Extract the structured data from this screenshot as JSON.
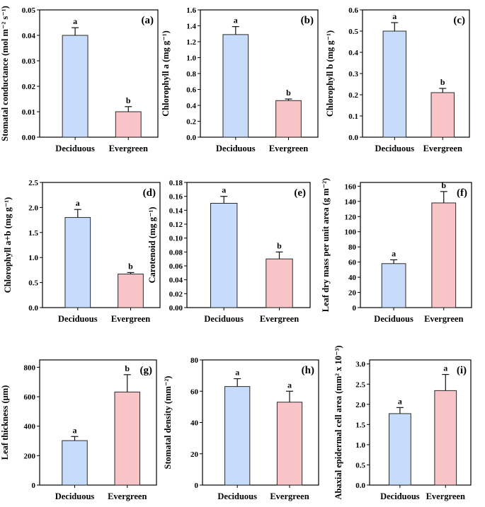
{
  "chart_data": [
    {
      "id": "a",
      "type": "bar",
      "panel_label": "(a)",
      "categories": [
        "Deciduous",
        "Evergreen"
      ],
      "values": [
        0.04,
        0.01
      ],
      "errors": [
        0.003,
        0.002
      ],
      "letters": [
        "a",
        "b"
      ],
      "ylabel": "Stomatal conductance (mol m⁻² s⁻¹)",
      "ylim": [
        0,
        0.05
      ],
      "yticks": [
        "0.00",
        "0.01",
        "0.02",
        "0.03",
        "0.04",
        "0.05"
      ]
    },
    {
      "id": "b",
      "type": "bar",
      "panel_label": "(b)",
      "categories": [
        "Deciduous",
        "Evergreen"
      ],
      "values": [
        1.29,
        0.46
      ],
      "errors": [
        0.1,
        0.02
      ],
      "letters": [
        "a",
        "b"
      ],
      "ylabel": "Chlorophyll a (mg g⁻¹)",
      "ylim": [
        0,
        1.6
      ],
      "yticks": [
        "0.0",
        "0.2",
        "0.4",
        "0.6",
        "0.8",
        "1.0",
        "1.2",
        "1.4",
        "1.6"
      ]
    },
    {
      "id": "c",
      "type": "bar",
      "panel_label": "(c)",
      "categories": [
        "Deciduous",
        "Evergreen"
      ],
      "values": [
        0.5,
        0.21
      ],
      "errors": [
        0.04,
        0.02
      ],
      "letters": [
        "a",
        "b"
      ],
      "ylabel": "Chlorophyll b (mg g⁻¹)",
      "ylim": [
        0,
        0.6
      ],
      "yticks": [
        "0.0",
        "0.1",
        "0.2",
        "0.3",
        "0.4",
        "0.5",
        "0.6"
      ]
    },
    {
      "id": "d",
      "type": "bar",
      "panel_label": "(d)",
      "categories": [
        "Deciduous",
        "Evergreen"
      ],
      "values": [
        1.8,
        0.67
      ],
      "errors": [
        0.16,
        0.03
      ],
      "letters": [
        "a",
        "b"
      ],
      "ylabel": "Chlorophyll a+b (mg g⁻¹)",
      "ylim": [
        0,
        2.5
      ],
      "yticks": [
        "0.0",
        "0.5",
        "1.0",
        "1.5",
        "2.0",
        "2.5"
      ]
    },
    {
      "id": "e",
      "type": "bar",
      "panel_label": "(e)",
      "categories": [
        "Deciduous",
        "Evergreen"
      ],
      "values": [
        0.15,
        0.07
      ],
      "errors": [
        0.01,
        0.01
      ],
      "letters": [
        "a",
        "b"
      ],
      "ylabel": "Carotenoid (mg g⁻¹)",
      "ylim": [
        0,
        0.18
      ],
      "yticks": [
        "0.00",
        "0.02",
        "0.04",
        "0.06",
        "0.08",
        "0.10",
        "0.12",
        "0.14",
        "0.16",
        "0.18"
      ]
    },
    {
      "id": "f",
      "type": "bar",
      "panel_label": "(f)",
      "categories": [
        "Deciduous",
        "Evergreen"
      ],
      "values": [
        58,
        138
      ],
      "errors": [
        5,
        15
      ],
      "letters": [
        "a",
        "b"
      ],
      "ylabel": "Leaf dry mass per unit area (g m⁻²)",
      "ylim": [
        0,
        165
      ],
      "yticks": [
        "0",
        "20",
        "40",
        "60",
        "80",
        "100",
        "120",
        "140",
        "160"
      ]
    },
    {
      "id": "g",
      "type": "bar",
      "panel_label": "(g)",
      "categories": [
        "Deciduous",
        "Evergreen"
      ],
      "values": [
        302,
        632
      ],
      "errors": [
        28,
        118
      ],
      "letters": [
        "a",
        "b"
      ],
      "ylabel": "Leaf thickness (μm)",
      "ylim": [
        0,
        850
      ],
      "yticks": [
        "0",
        "200",
        "400",
        "600",
        "800"
      ]
    },
    {
      "id": "h",
      "type": "bar",
      "panel_label": "(h)",
      "categories": [
        "Deciduous",
        "Evergreen"
      ],
      "values": [
        63,
        53
      ],
      "errors": [
        5,
        7
      ],
      "letters": [
        "a",
        "a"
      ],
      "ylabel": "Stomatal density (mm⁻²)",
      "ylim": [
        0,
        80
      ],
      "yticks": [
        "0",
        "20",
        "40",
        "60",
        "80"
      ]
    },
    {
      "id": "i",
      "type": "bar",
      "panel_label": "(i)",
      "categories": [
        "Deciduous",
        "Evergreen"
      ],
      "values": [
        1.77,
        2.34
      ],
      "errors": [
        0.15,
        0.4
      ],
      "letters": [
        "a",
        "a"
      ],
      "ylabel": "Abaxial epidermal cell area (mm² x 10⁻³)",
      "ylim": [
        0,
        3.1
      ],
      "yticks": [
        "0.0",
        "0.5",
        "1.0",
        "1.5",
        "2.0",
        "2.5",
        "3.0"
      ]
    }
  ],
  "colors": {
    "deciduous_fill": "#c7dcfa",
    "evergreen_fill": "#f9c4c7",
    "bar_stroke": "#2a2a2a",
    "axis": "#000000"
  }
}
